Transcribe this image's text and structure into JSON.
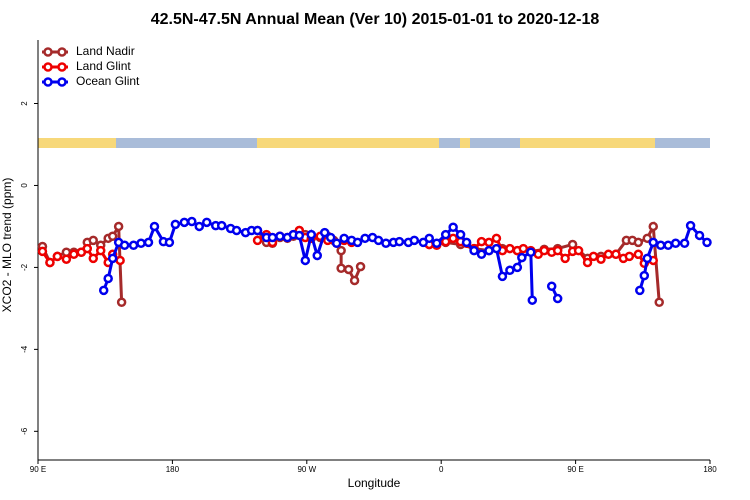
{
  "chart_data": {
    "type": "line",
    "title": "42.5N-47.5N Annual Mean (Ver 10)   2015-01-01 to 2020-12-18",
    "x_label": "Longitude",
    "y_label": "XCO2 - MLO trend (ppm)",
    "xlim": [
      90,
      540
    ],
    "ylim": [
      -6.7,
      3.55
    ],
    "xticks": [
      {
        "value": 90,
        "label": "90 E"
      },
      180,
      {
        "value": 270,
        "label": "90 W"
      },
      {
        "value": 360,
        "label": "0"
      },
      {
        "value": 450,
        "label": "90 E"
      },
      {
        "value": 540,
        "label": "180"
      }
    ],
    "yticks": [
      2,
      0,
      -2,
      -4,
      -6
    ],
    "legend": "top-left",
    "series": [
      {
        "name": "Land Nadir",
        "color": "#a52a2a",
        "x": [
          93,
          98,
          103,
          109,
          114,
          119,
          123,
          127,
          132,
          137,
          140,
          144,
          146,
          null,
          237,
          243,
          247,
          252,
          257,
          261,
          265,
          269,
          273,
          279,
          284,
          288,
          293,
          293,
          298,
          302,
          306,
          null,
          352,
          363,
          373,
          382,
          392,
          401,
          411,
          420,
          429,
          438,
          448,
          458,
          467,
          477,
          484,
          488,
          492,
          498,
          502,
          506
        ],
        "values": [
          -1.49,
          -1.88,
          -1.73,
          -1.63,
          -1.63,
          -1.63,
          -1.39,
          -1.34,
          -1.46,
          -1.29,
          -1.24,
          -1.0,
          -2.85,
          null,
          -1.1,
          -1.39,
          -1.41,
          -1.27,
          -1.29,
          -1.24,
          -1.1,
          -1.2,
          -1.24,
          -1.27,
          -1.24,
          -1.34,
          -1.59,
          -2.02,
          -2.05,
          -2.32,
          -1.98,
          null,
          -1.44,
          -1.39,
          -1.44,
          -1.54,
          -1.59,
          -1.54,
          -1.59,
          -1.61,
          -1.56,
          -1.54,
          -1.44,
          -1.78,
          -1.73,
          -1.68,
          -1.34,
          -1.34,
          -1.39,
          -1.29,
          -1.0,
          -2.85
        ]
      },
      {
        "name": "Land Glint",
        "color": "#ee0000",
        "x": [
          93,
          98,
          103,
          109,
          114,
          119,
          123,
          127,
          132,
          137,
          140,
          145,
          null,
          237,
          243,
          247,
          252,
          257,
          261,
          265,
          269,
          273,
          279,
          284,
          290,
          295,
          300,
          null,
          352,
          357,
          363,
          368,
          373,
          377,
          382,
          387,
          392,
          397,
          401,
          406,
          411,
          415,
          420,
          425,
          429,
          434,
          438,
          443,
          448,
          452,
          458,
          462,
          467,
          472,
          477,
          482,
          486,
          492,
          496,
          502
        ],
        "values": [
          -1.61,
          -1.88,
          -1.73,
          -1.8,
          -1.68,
          -1.63,
          -1.54,
          -1.78,
          -1.59,
          -1.88,
          -1.68,
          -1.83,
          null,
          -1.34,
          -1.2,
          -1.39,
          -1.24,
          -1.27,
          -1.2,
          -1.1,
          -1.27,
          -1.29,
          -1.24,
          -1.34,
          -1.41,
          -1.34,
          -1.39,
          null,
          -1.44,
          -1.46,
          -1.37,
          -1.29,
          -1.37,
          -1.41,
          -1.54,
          -1.37,
          -1.39,
          -1.29,
          -1.59,
          -1.54,
          -1.59,
          -1.54,
          -1.59,
          -1.68,
          -1.59,
          -1.63,
          -1.59,
          -1.78,
          -1.61,
          -1.59,
          -1.88,
          -1.73,
          -1.8,
          -1.68,
          -1.68,
          -1.78,
          -1.73,
          -1.68,
          -1.9,
          -1.83
        ]
      },
      {
        "name": "Ocean Glint",
        "color": "#0000ee",
        "x": [
          134,
          137,
          140,
          144,
          148,
          154,
          159,
          164,
          168,
          174,
          178,
          182,
          188,
          193,
          198,
          203,
          209,
          213,
          219,
          223,
          229,
          233,
          237,
          243,
          247,
          252,
          257,
          261,
          265,
          269,
          273,
          277,
          282,
          286,
          290,
          295,
          300,
          304,
          309,
          314,
          318,
          323,
          328,
          332,
          338,
          342,
          348,
          352,
          357,
          363,
          368,
          373,
          377,
          382,
          387,
          392,
          397,
          401,
          406,
          411,
          414,
          420,
          421,
          null,
          434,
          438,
          null,
          493,
          496,
          498,
          502,
          507,
          512,
          517,
          523,
          527,
          533,
          538
        ],
        "values": [
          -2.56,
          -2.27,
          -1.78,
          -1.39,
          -1.46,
          -1.46,
          -1.41,
          -1.39,
          -1.0,
          -1.37,
          -1.39,
          -0.95,
          -0.9,
          -0.88,
          -1.0,
          -0.9,
          -0.98,
          -0.98,
          -1.05,
          -1.1,
          -1.15,
          -1.1,
          -1.1,
          -1.27,
          -1.27,
          -1.24,
          -1.27,
          -1.2,
          -1.22,
          -1.83,
          -1.2,
          -1.71,
          -1.15,
          -1.27,
          -1.41,
          -1.29,
          -1.34,
          -1.39,
          -1.29,
          -1.27,
          -1.34,
          -1.41,
          -1.39,
          -1.37,
          -1.39,
          -1.34,
          -1.39,
          -1.29,
          -1.41,
          -1.2,
          -1.02,
          -1.2,
          -1.39,
          -1.59,
          -1.68,
          -1.59,
          -1.54,
          -2.22,
          -2.07,
          -2.0,
          -1.76,
          -1.63,
          -2.8,
          null,
          -2.46,
          -2.76,
          null,
          -2.56,
          -2.2,
          -1.78,
          -1.39,
          -1.46,
          -1.46,
          -1.41,
          -1.41,
          -0.98,
          -1.22,
          -1.39
        ]
      }
    ]
  }
}
